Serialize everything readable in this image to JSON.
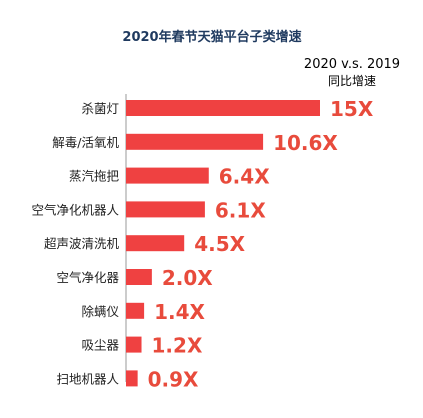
{
  "chart_data": {
    "type": "bar",
    "orientation": "horizontal",
    "title": "2020年春节天猫平台子类增速",
    "subtitle_line1": "2020 v.s. 2019",
    "subtitle_line2": "同比增速",
    "categories": [
      "杀菌灯",
      "解毒/活氧机",
      "蒸汽拖把",
      "空气净化机器人",
      "超声波清洗机",
      "空气净化器",
      "除螨仪",
      "吸尘器",
      "扫地机器人"
    ],
    "values": [
      15,
      10.6,
      6.4,
      6.1,
      4.5,
      2.0,
      1.4,
      1.2,
      0.9
    ],
    "value_labels": [
      "15X",
      "10.6X",
      "6.4X",
      "6.1X",
      "4.5X",
      "2.0X",
      "1.4X",
      "1.2X",
      "0.9X"
    ],
    "bar_color": "#ef4141",
    "label_color": "#e84b3c",
    "axis_color": "#999999",
    "title_color": "#1f3a5f"
  }
}
